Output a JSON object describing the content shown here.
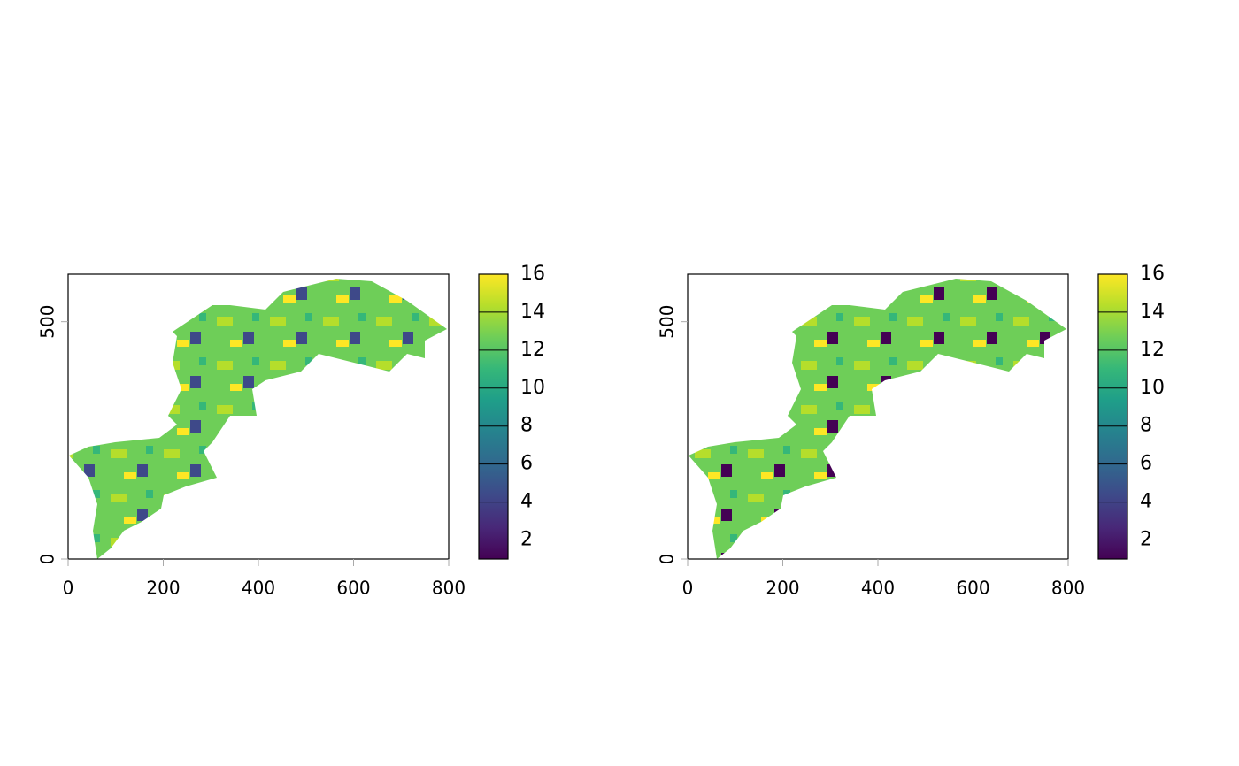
{
  "chart_data": [
    {
      "type": "raster",
      "xlim": [
        0,
        800
      ],
      "ylim": [
        0,
        600
      ],
      "xticks": [
        0,
        200,
        400,
        600,
        800
      ],
      "yticks": [
        0,
        500
      ],
      "legend": {
        "lim": [
          1,
          16
        ],
        "ticks": [
          2,
          4,
          6,
          8,
          10,
          12,
          14,
          16
        ],
        "colors": [
          "#440154",
          "#482878",
          "#3e4989",
          "#31688e",
          "#26828e",
          "#1f9e89",
          "#35b779",
          "#6ece58",
          "#b5de2b",
          "#fde725"
        ]
      }
    },
    {
      "type": "raster",
      "xlim": [
        0,
        800
      ],
      "ylim": [
        0,
        600
      ],
      "xticks": [
        0,
        200,
        400,
        600,
        800
      ],
      "yticks": [
        0,
        500
      ],
      "legend": {
        "lim": [
          1,
          16
        ],
        "ticks": [
          2,
          4,
          6,
          8,
          10,
          12,
          14,
          16
        ],
        "colors": [
          "#440154",
          "#482878",
          "#3e4989",
          "#31688e",
          "#26828e",
          "#1f9e89",
          "#35b779",
          "#6ece58",
          "#b5de2b",
          "#fde725"
        ]
      }
    }
  ]
}
